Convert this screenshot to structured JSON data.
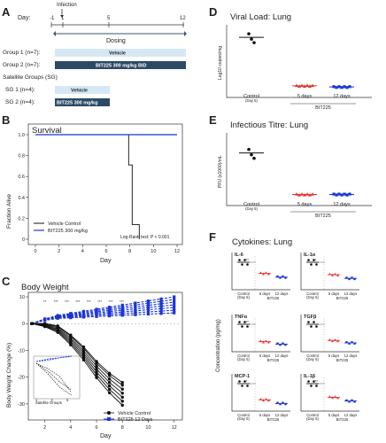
{
  "colors": {
    "control": "#111111",
    "bit_red": "#e8322b",
    "bit_blue": "#1a35d6",
    "vehicle_bar": "#d5e8f3",
    "bit_bar": "#2b4a66",
    "dosing": "#3a5670"
  },
  "panel_a": {
    "letter": "A",
    "day_label": "Day:",
    "infection": "Infection",
    "days": [
      "-1",
      "1",
      "5",
      "12"
    ],
    "dosing": "Dosing",
    "group1": "Group 1 (n=7):",
    "group2": "Group 2 (n=7):",
    "vehicle": "Vehicle",
    "bit_bid": "BIT225 300 mg/kg BID",
    "satellite": "Satellite Groups (SG)",
    "sg1": "SG 1 (n=4):",
    "sg2": "SG 2 (n=4):",
    "bit_sg": "BIT225 300 mg/kg"
  },
  "panel_b": {
    "letter": "B",
    "title": "Survival",
    "ylabel": "Fraction Alive",
    "xlabel": "Day",
    "yticks": [
      "0",
      "0.2",
      "0.4",
      "0.6",
      "0.8",
      "1.0"
    ],
    "xticks": [
      "0",
      "2",
      "4",
      "6",
      "8",
      "10",
      "12"
    ],
    "legend": [
      "Vehicle Control",
      "BIT225 300 mg/kg"
    ],
    "stat": "Log-Rank test: P < 0.001"
  },
  "panel_c": {
    "letter": "C",
    "title": "Body Weight",
    "ylabel": "Body Weight Change (%)",
    "xlabel": "Day",
    "yticks": [
      "10",
      "0",
      "-10",
      "-20",
      "-30"
    ],
    "xticks": [
      "2",
      "4",
      "6",
      "8",
      "10",
      "12"
    ],
    "sig": [
      "**",
      "***",
      "***",
      "***",
      "***",
      "***",
      "***",
      "***"
    ],
    "legend": [
      "Vehicle Control",
      "BIT225 12 Days"
    ],
    "inset_label": "Satellite Groups",
    "inset_xticks": [
      "1",
      "3",
      "5"
    ]
  },
  "panel_d": {
    "letter": "D",
    "title": "Viral Load: Lung",
    "ylabel": "Log10 copies/mg",
    "groups": [
      "Control",
      "5 days",
      "12 days"
    ],
    "sub": "(Day 5)",
    "bit": "BIT225"
  },
  "panel_e": {
    "letter": "E",
    "title": "Infectious Titre: Lung",
    "ylabel": "PFU (x1000)/mL",
    "groups": [
      "Control",
      "5 days",
      "12 days"
    ],
    "sub": "(Day 5)",
    "bit": "BIT225"
  },
  "panel_f": {
    "letter": "F",
    "title": "Cytokines: Lung",
    "ylabel": "Concentration (pg/mg)",
    "cytokines": [
      {
        "name": "IL-6",
        "sig": "***"
      },
      {
        "name": "IL-1α",
        "sig": "**"
      },
      {
        "name": "TNFα",
        "sig": "***"
      },
      {
        "name": "TGFβ",
        "sig": "*"
      },
      {
        "name": "MCP-1",
        "sig": "**"
      },
      {
        "name": "IL-1β",
        "sig": "***"
      }
    ],
    "groups": [
      "Control",
      "5 days",
      "12 days"
    ],
    "sub": "(Day 5)",
    "bit": "BIT225"
  },
  "chart_data": [
    {
      "type": "line",
      "title": "Survival",
      "xlabel": "Day",
      "ylabel": "Fraction Alive",
      "xlim": [
        0,
        12
      ],
      "ylim": [
        0,
        1
      ],
      "series": [
        {
          "name": "Vehicle Control",
          "x": [
            0,
            7.9,
            7.9,
            8.2,
            8.2,
            8.8,
            8.8
          ],
          "y": [
            1,
            1,
            0.71,
            0.71,
            0.14,
            0.14,
            0
          ]
        },
        {
          "name": "BIT225 300 mg/kg",
          "x": [
            0,
            12
          ],
          "y": [
            1,
            1
          ]
        }
      ]
    },
    {
      "type": "line",
      "title": "Body Weight",
      "xlabel": "Day",
      "ylabel": "Body Weight Change (%)",
      "xlim": [
        1,
        12
      ],
      "ylim": [
        -36,
        11
      ],
      "series": [
        {
          "name": "Vehicle Control",
          "x": [
            1,
            2,
            3,
            4,
            5,
            6,
            7,
            8
          ],
          "y": [
            0,
            -0.5,
            -2,
            -6,
            -11,
            -17,
            -22,
            -26
          ]
        },
        {
          "name": "BIT225 12 Days",
          "x": [
            1,
            2,
            3,
            4,
            5,
            6,
            7,
            8,
            9,
            10,
            11,
            12
          ],
          "y": [
            0,
            1.5,
            2.5,
            3,
            3.5,
            4,
            4.5,
            5,
            5.5,
            6,
            6.5,
            7
          ]
        }
      ]
    },
    {
      "type": "scatter",
      "title": "Viral Load: Lung",
      "ylabel": "Log10 copies/mg",
      "categories": [
        "Control",
        "5 days",
        "12 days"
      ],
      "means": [
        4.7,
        0.4,
        0.3
      ]
    },
    {
      "type": "scatter",
      "title": "Infectious Titre: Lung",
      "ylabel": "PFU (x1000)/mL",
      "categories": [
        "Control",
        "5 days",
        "12 days"
      ],
      "means": [
        3.4,
        0.3,
        0.3
      ]
    },
    {
      "type": "scatter",
      "title": "Cytokines: Lung",
      "ylabel": "Concentration (pg/mg)",
      "categories": [
        "Control",
        "5 days",
        "12 days"
      ],
      "series": [
        {
          "name": "IL-6",
          "means": [
            1.0,
            0.55,
            0.4
          ]
        },
        {
          "name": "IL-1α",
          "means": [
            1.0,
            0.5,
            0.35
          ]
        },
        {
          "name": "TNFα",
          "means": [
            1.0,
            0.3,
            0.2
          ]
        },
        {
          "name": "TGFβ",
          "means": [
            1.0,
            0.35,
            0.25
          ]
        },
        {
          "name": "MCP-1",
          "means": [
            1.0,
            0.35,
            0.2
          ]
        },
        {
          "name": "IL-1β",
          "means": [
            1.0,
            0.45,
            0.3
          ]
        }
      ]
    }
  ]
}
